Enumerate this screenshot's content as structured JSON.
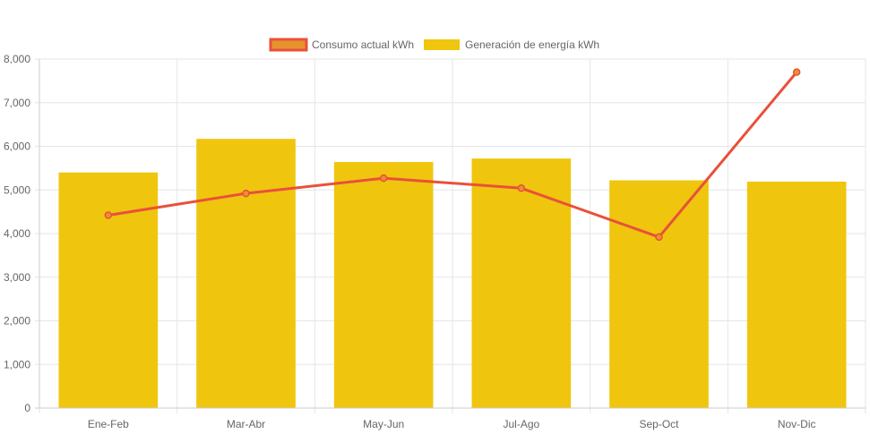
{
  "chart_data": {
    "type": "bar",
    "categories": [
      "Ene-Feb",
      "Mar-Abr",
      "May-Jun",
      "Jul-Ago",
      "Sep-Oct",
      "Nov-Dic"
    ],
    "series": [
      {
        "name": "Consumo actual kWh",
        "type": "line",
        "values": [
          4420,
          4920,
          5270,
          5040,
          3920,
          7700
        ],
        "color": "#e8513a",
        "legend_fill": "#e8922e"
      },
      {
        "name": "Generación de energía kWh",
        "type": "bar",
        "values": [
          5400,
          6170,
          5640,
          5720,
          5220,
          5190
        ],
        "color": "#f0c50e"
      }
    ],
    "ylim": [
      0,
      8000
    ],
    "yticks": [
      0,
      1000,
      2000,
      3000,
      4000,
      5000,
      6000,
      7000,
      8000
    ],
    "ytick_labels": [
      "0",
      "1,000",
      "2,000",
      "3,000",
      "4,000",
      "5,000",
      "6,000",
      "7,000",
      "8,000"
    ],
    "grid": true,
    "legend_position": "top-center",
    "grid_color": "#e6e6e6",
    "axis_color": "#cccccc"
  }
}
